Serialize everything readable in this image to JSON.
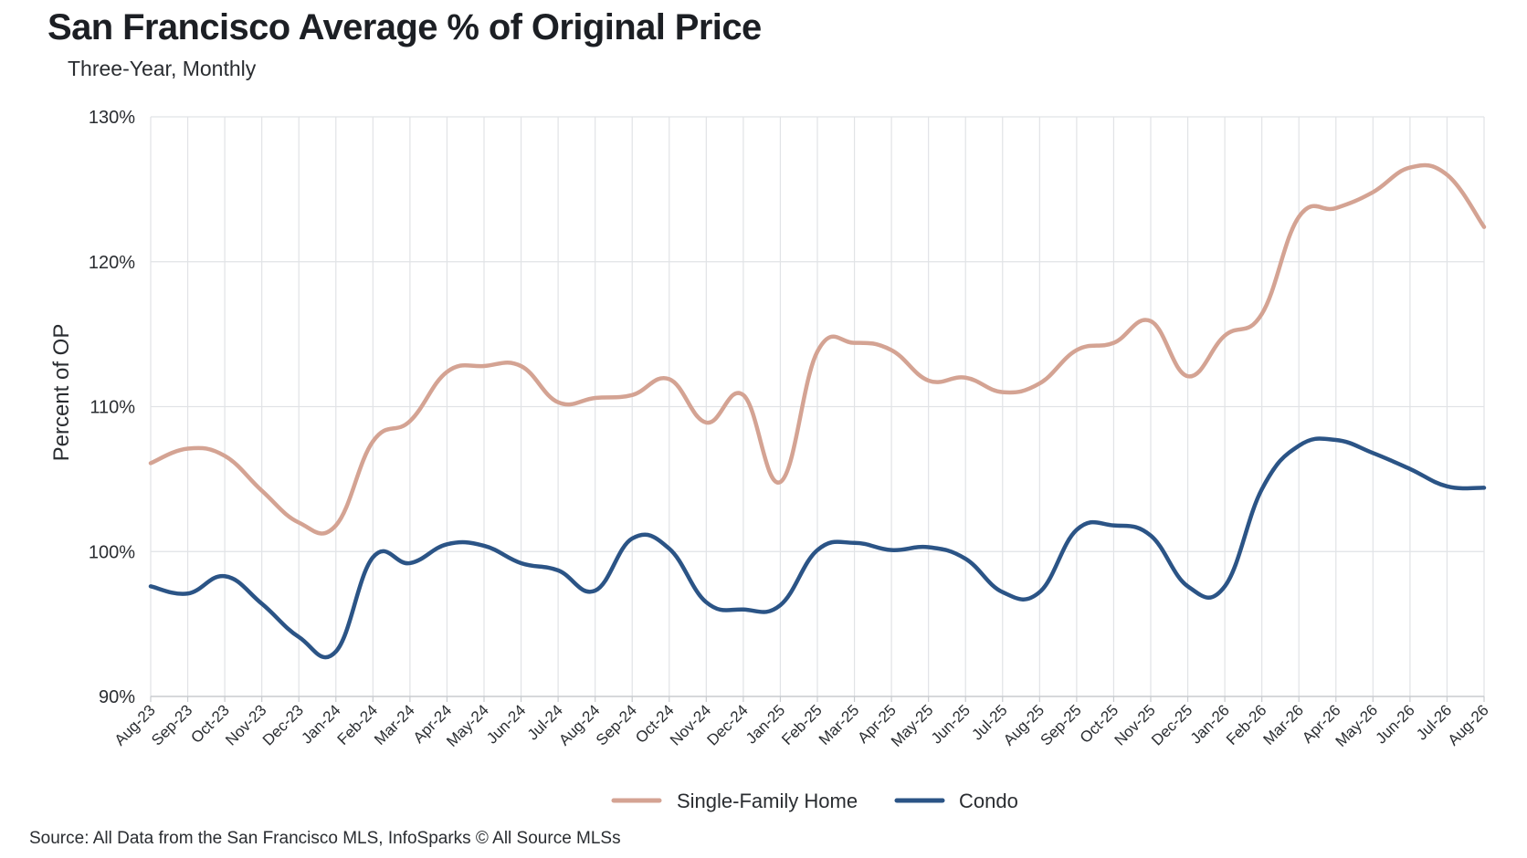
{
  "chart_data": {
    "type": "line",
    "title": "San Francisco Average % of Original Price",
    "subtitle": "Three-Year, Monthly",
    "xlabel": "",
    "ylabel": "Percent of OP",
    "ylim": [
      90,
      130
    ],
    "yticks": [
      90,
      100,
      110,
      120,
      130
    ],
    "ytick_labels": [
      "90%",
      "100%",
      "110%",
      "120%",
      "130%"
    ],
    "grid": true,
    "legend_position": "bottom",
    "categories": [
      "Aug-23",
      "Sep-23",
      "Oct-23",
      "Nov-23",
      "Dec-23",
      "Jan-24",
      "Feb-24",
      "Mar-24",
      "Apr-24",
      "May-24",
      "Jun-24",
      "Jul-24",
      "Aug-24",
      "Sep-24",
      "Oct-24",
      "Nov-24",
      "Dec-24",
      "Jan-25",
      "Feb-25",
      "Mar-25",
      "Apr-25",
      "May-25",
      "Jun-25",
      "Jul-25",
      "Aug-25",
      "Sep-25",
      "Oct-25",
      "Nov-25",
      "Dec-25",
      "Jan-26",
      "Feb-26",
      "Mar-26",
      "Apr-26",
      "May-26",
      "Jun-26",
      "Jul-26",
      "Aug-26"
    ],
    "series": [
      {
        "name": "Single-Family Home",
        "color": "#d4a393",
        "values": [
          106.1,
          107.1,
          106.6,
          104.2,
          102.0,
          101.8,
          107.6,
          109.0,
          112.4,
          112.8,
          112.8,
          110.3,
          110.6,
          110.8,
          111.9,
          108.9,
          110.8,
          104.8,
          113.8,
          114.4,
          113.9,
          111.8,
          112.0,
          111.0,
          111.6,
          113.9,
          114.4,
          115.9,
          112.1,
          114.9,
          116.4,
          123.1,
          123.7,
          124.8,
          126.5,
          126.0,
          122.4
        ]
      },
      {
        "name": "Condo",
        "color": "#2b5486",
        "values": [
          97.6,
          97.1,
          98.3,
          96.4,
          94.1,
          93.1,
          99.6,
          99.2,
          100.5,
          100.4,
          99.2,
          98.7,
          97.3,
          100.9,
          100.2,
          96.5,
          96.0,
          96.3,
          100.1,
          100.6,
          100.1,
          100.3,
          99.5,
          97.2,
          97.2,
          101.5,
          101.8,
          101.1,
          97.6,
          97.6,
          104.3,
          107.3,
          107.7,
          106.8,
          105.7,
          104.5,
          104.4
        ]
      }
    ]
  },
  "source": "Source: All Data from the San Francisco MLS, InfoSparks © All Source MLSs"
}
